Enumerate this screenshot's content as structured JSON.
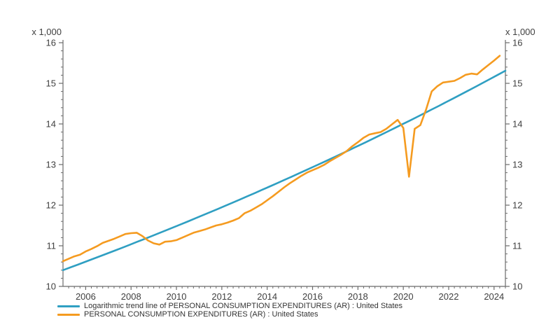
{
  "figure": {
    "unit_label_left": "x 1,000",
    "unit_label_right": "x 1,000"
  },
  "legend": {
    "items": [
      {
        "label": "Logarithmic trend line of PERSONAL CONSUMPTION EXPENDITURES (AR) : United States",
        "color": "#2f9fc2"
      },
      {
        "label": "PERSONAL CONSUMPTION EXPENDITURES (AR) : United States",
        "color": "#f59b20"
      }
    ]
  },
  "colors": {
    "trend_line": "#2f9fc2",
    "series_line": "#f59b20",
    "axis": "#6b6b6b",
    "tick_text": "#404040"
  },
  "chart_data": {
    "type": "line",
    "title": "",
    "xlabel": "",
    "ylabel": "x 1,000",
    "grid": false,
    "legend_position": "bottom-left",
    "x_axis": {
      "range": [
        2005.0,
        2024.5
      ],
      "tick_labels": [
        "2006",
        "2008",
        "2010",
        "2012",
        "2014",
        "2016",
        "2018",
        "2020",
        "2022",
        "2024"
      ],
      "major_tick_years": [
        2006,
        2008,
        2010,
        2012,
        2014,
        2016,
        2018,
        2020,
        2022,
        2024
      ],
      "minor_tick_interval": 0.25
    },
    "y_axis": {
      "range": [
        10,
        16
      ],
      "tick_labels": [
        "10",
        "11",
        "12",
        "13",
        "14",
        "15",
        "16"
      ],
      "major_tick_values": [
        10,
        11,
        12,
        13,
        14,
        15,
        16
      ],
      "minor_tick_interval": 0.2,
      "shown_on_both_sides": true
    },
    "series": [
      {
        "name": "Logarithmic trend line of PERSONAL CONSUMPTION EXPENDITURES (AR) : United States",
        "color": "#2f9fc2",
        "shape": "exponential_trend",
        "x": [
          2005.0,
          2024.5
        ],
        "values": [
          10.4,
          15.31
        ]
      },
      {
        "name": "PERSONAL CONSUMPTION EXPENDITURES (AR) : United States",
        "color": "#f59b20",
        "shape": "quarterly",
        "x_start": 2005.0,
        "x_step": 0.25,
        "values": [
          10.62,
          10.68,
          10.74,
          10.78,
          10.86,
          10.92,
          10.99,
          11.07,
          11.12,
          11.17,
          11.23,
          11.29,
          11.31,
          11.32,
          11.24,
          11.13,
          11.06,
          11.03,
          11.1,
          11.11,
          11.14,
          11.2,
          11.26,
          11.32,
          11.36,
          11.4,
          11.45,
          11.5,
          11.53,
          11.57,
          11.62,
          11.68,
          11.8,
          11.86,
          11.94,
          12.02,
          12.12,
          12.22,
          12.33,
          12.44,
          12.54,
          12.63,
          12.72,
          12.8,
          12.86,
          12.92,
          12.99,
          13.08,
          13.16,
          13.24,
          13.33,
          13.45,
          13.55,
          13.66,
          13.74,
          13.77,
          13.8,
          13.88,
          13.99,
          14.1,
          13.9,
          12.7,
          13.88,
          13.97,
          14.35,
          14.8,
          14.93,
          15.02,
          15.04,
          15.06,
          15.13,
          15.21,
          15.24,
          15.22,
          15.34,
          15.45,
          15.56,
          15.68
        ]
      }
    ]
  }
}
